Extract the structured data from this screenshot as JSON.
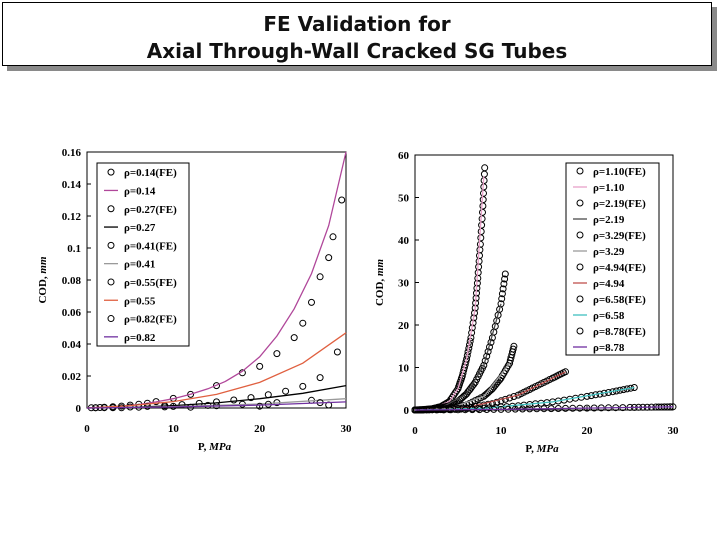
{
  "title": {
    "line1": "FE Validation for",
    "line2": "Axial Through-Wall Cracked SG Tubes"
  },
  "chart_data": [
    {
      "type": "line",
      "xlabel": "P, MPa",
      "ylabel": "COD, mm",
      "xlim": [
        0,
        30
      ],
      "ylim": [
        0,
        0.16
      ],
      "x_ticks": [
        "0",
        "10",
        "20",
        "30"
      ],
      "y_ticks": [
        "0",
        "0.02",
        "0.04",
        "0.06",
        "0.08",
        "0.1",
        "0.12",
        "0.14",
        "0.16"
      ],
      "legend_position": "top-left",
      "series": [
        {
          "name": "ρ=0.14(FE)",
          "style": "markers",
          "color": "#000000",
          "x": [
            0.5,
            1,
            1.5,
            2,
            3,
            4,
            5,
            6,
            7,
            8,
            10,
            12,
            15,
            18,
            20,
            22,
            24,
            25,
            26,
            27,
            28,
            28.5,
            29.5
          ],
          "y": [
            0.0001,
            0.0002,
            0.0003,
            0.0005,
            0.0008,
            0.0012,
            0.0018,
            0.0024,
            0.003,
            0.004,
            0.006,
            0.0085,
            0.014,
            0.022,
            0.026,
            0.034,
            0.044,
            0.053,
            0.066,
            0.082,
            0.094,
            0.107,
            0.13
          ]
        },
        {
          "name": "ρ=0.14",
          "style": "line",
          "color": "#b0479a",
          "x": [
            0,
            2,
            4,
            6,
            8,
            10,
            12,
            14,
            16,
            18,
            20,
            22,
            24,
            26,
            28,
            30
          ],
          "y": [
            0,
            0.0005,
            0.0012,
            0.0022,
            0.0038,
            0.0058,
            0.0086,
            0.012,
            0.0165,
            0.023,
            0.032,
            0.045,
            0.062,
            0.084,
            0.114,
            0.16
          ]
        },
        {
          "name": "ρ=0.27(FE)",
          "style": "markers",
          "color": "#000000",
          "x": [
            1,
            3,
            5,
            7,
            9,
            11,
            13,
            15,
            17,
            19,
            21,
            23,
            25,
            27,
            29
          ],
          "y": [
            0.0001,
            0.0003,
            0.0006,
            0.001,
            0.0015,
            0.0021,
            0.0029,
            0.0038,
            0.005,
            0.0065,
            0.0083,
            0.0105,
            0.0135,
            0.019,
            0.035
          ]
        },
        {
          "name": "ρ=0.27",
          "style": "line",
          "color": "#000000",
          "x": [
            0,
            5,
            10,
            15,
            20,
            25,
            30
          ],
          "y": [
            0,
            0.0004,
            0.0015,
            0.0032,
            0.0058,
            0.0092,
            0.014
          ]
        },
        {
          "name": "ρ=0.41(FE)",
          "style": "markers",
          "color": "#000000",
          "x": [
            2,
            6,
            10,
            14,
            18,
            22,
            26
          ],
          "y": [
            0.0002,
            0.0005,
            0.001,
            0.0016,
            0.0024,
            0.0034,
            0.0048
          ]
        },
        {
          "name": "ρ=0.41",
          "style": "line",
          "color": "#9a9a9a",
          "x": [
            0,
            10,
            20,
            30
          ],
          "y": [
            0,
            0.0008,
            0.0025,
            0.0058
          ]
        },
        {
          "name": "ρ=0.55(FE)",
          "style": "markers",
          "color": "#000000",
          "x": [
            3,
            9,
            15,
            21,
            27
          ],
          "y": [
            0.0002,
            0.0007,
            0.0014,
            0.0023,
            0.0034
          ]
        },
        {
          "name": "ρ=0.55",
          "style": "line",
          "color": "#e06040",
          "x": [
            0,
            5,
            10,
            15,
            20,
            25,
            30
          ],
          "y": [
            0,
            0.0015,
            0.004,
            0.0085,
            0.016,
            0.028,
            0.047
          ]
        },
        {
          "name": "ρ=0.82(FE)",
          "style": "markers",
          "color": "#000000",
          "x": [
            4,
            12,
            20,
            28
          ],
          "y": [
            0.0001,
            0.0005,
            0.0011,
            0.0019
          ]
        },
        {
          "name": "ρ=0.82",
          "style": "line",
          "color": "#7030a0",
          "x": [
            0,
            10,
            20,
            30
          ],
          "y": [
            0,
            0.0006,
            0.0018,
            0.0038
          ]
        }
      ]
    },
    {
      "type": "line",
      "xlabel": "P, MPa",
      "ylabel": "COD, mm",
      "xlim": [
        0,
        30
      ],
      "ylim": [
        0,
        60
      ],
      "x_ticks": [
        "0",
        "10",
        "20",
        "30"
      ],
      "y_ticks": [
        "0",
        "10",
        "20",
        "30",
        "40",
        "50",
        "60"
      ],
      "legend_position": "top-right",
      "series": [
        {
          "name": "ρ=1.10(FE)",
          "style": "markers",
          "color": "#000000",
          "x": [
            0,
            1,
            2,
            3,
            4,
            5,
            5.5,
            6,
            6.5,
            7,
            7.3,
            7.6,
            7.9,
            8.1
          ],
          "y": [
            0,
            0.1,
            0.3,
            0.8,
            2,
            5,
            8,
            12,
            17,
            24,
            31,
            39,
            48,
            57
          ]
        },
        {
          "name": "ρ=1.10",
          "style": "line",
          "color": "#e8a0c8",
          "x": [
            0,
            2,
            4,
            5,
            6,
            7,
            8
          ],
          "y": [
            0,
            0.3,
            2,
            5,
            12,
            24,
            55
          ]
        },
        {
          "name": "ρ=2.19(FE)",
          "style": "markers",
          "color": "#000000",
          "x": [
            0,
            1,
            2,
            3,
            4,
            5,
            6,
            7,
            8,
            9,
            10,
            10.5
          ],
          "y": [
            0,
            0.05,
            0.2,
            0.5,
            1,
            2,
            3.8,
            6.5,
            10.5,
            17,
            25,
            32
          ]
        },
        {
          "name": "ρ=2.19",
          "style": "line",
          "color": "#4a4a4a",
          "x": [
            0,
            3,
            6,
            8,
            10
          ],
          "y": [
            0,
            0.5,
            3.8,
            10.5,
            25
          ]
        },
        {
          "name": "ρ=3.29(FE)",
          "style": "markers",
          "color": "#000000",
          "x": [
            0,
            2,
            4,
            6,
            8,
            9,
            10,
            11,
            11.5
          ],
          "y": [
            0,
            0.1,
            0.4,
            1.2,
            3.2,
            5,
            7.5,
            11,
            15
          ]
        },
        {
          "name": "ρ=3.29",
          "style": "line",
          "color": "#9a9a9a",
          "x": [
            0,
            4,
            8,
            11
          ],
          "y": [
            0,
            0.4,
            3.2,
            11
          ]
        },
        {
          "name": "ρ=4.94(FE)",
          "style": "markers",
          "color": "#000000",
          "x": [
            0,
            3,
            6,
            9,
            12,
            14,
            16,
            17.5
          ],
          "y": [
            0,
            0.1,
            0.5,
            1.5,
            3.5,
            5.5,
            7.5,
            9
          ]
        },
        {
          "name": "ρ=4.94",
          "style": "line",
          "color": "#c0504d",
          "x": [
            0,
            6,
            12,
            17.5
          ],
          "y": [
            0,
            0.5,
            3.5,
            9
          ]
        },
        {
          "name": "ρ=6.58(FE)",
          "style": "markers",
          "color": "#000000",
          "x": [
            0,
            4,
            8,
            12,
            16,
            20,
            23,
            25.5
          ],
          "y": [
            0,
            0.1,
            0.4,
            1,
            1.9,
            3.2,
            4.3,
            5.3
          ]
        },
        {
          "name": "ρ=6.58",
          "style": "line",
          "color": "#40c0c0",
          "x": [
            0,
            8,
            16,
            25.5
          ],
          "y": [
            0,
            0.4,
            1.9,
            5.3
          ]
        },
        {
          "name": "ρ=8.78(FE)",
          "style": "markers",
          "color": "#000000",
          "x": [
            0,
            5,
            10,
            15,
            20,
            25,
            28,
            30
          ],
          "y": [
            0,
            0.05,
            0.15,
            0.3,
            0.45,
            0.6,
            0.7,
            0.75
          ]
        },
        {
          "name": "ρ=8.78",
          "style": "line",
          "color": "#7030a0",
          "x": [
            0,
            10,
            20,
            30
          ],
          "y": [
            0,
            0.15,
            0.45,
            0.75
          ]
        }
      ]
    }
  ]
}
